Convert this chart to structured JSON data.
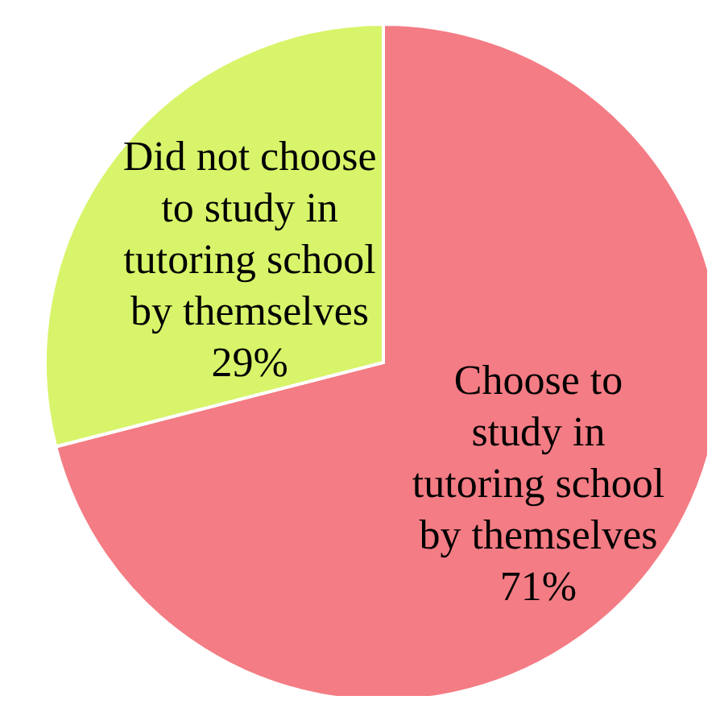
{
  "chart_data": {
    "type": "pie",
    "categories": [
      "Choose to\nstudy in\ntutoring school\nby themselves",
      "Did not choose\nto study in\ntutoring school\nby themselves"
    ],
    "values": [
      71,
      29
    ],
    "colors": [
      "#f47c84",
      "#d8f46a"
    ],
    "value_labels": [
      "71%",
      "29%"
    ]
  }
}
